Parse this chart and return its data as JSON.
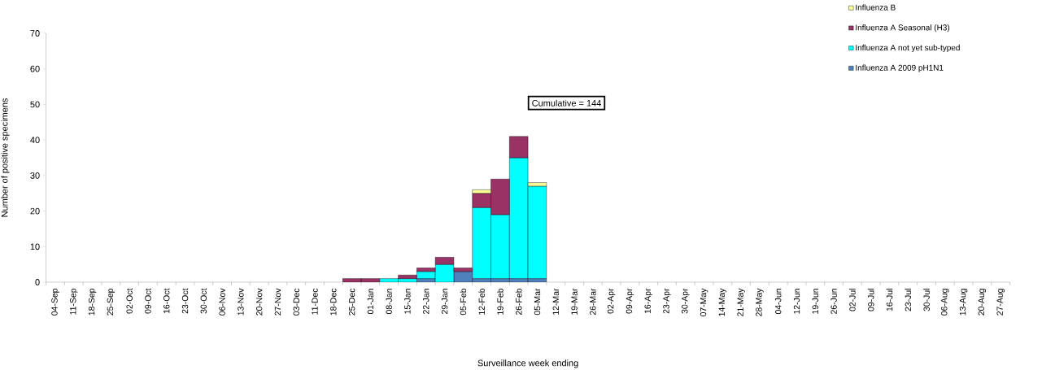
{
  "chart_data": {
    "type": "bar",
    "stacked": true,
    "xlabel": "Surveillance week ending",
    "ylabel": "Number of positive specimens",
    "categories": [
      "04-Sep",
      "11-Sep",
      "18-Sep",
      "25-Sep",
      "02-Oct",
      "09-Oct",
      "16-Oct",
      "23-Oct",
      "30-Oct",
      "06-Nov",
      "13-Nov",
      "20-Nov",
      "27-Nov",
      "03-Dec",
      "11-Dec",
      "18-Dec",
      "25-Dec",
      "01-Jan",
      "08-Jan",
      "15-Jan",
      "22-Jan",
      "29-Jan",
      "05-Feb",
      "12-Feb",
      "19-Feb",
      "26-Feb",
      "05-Mar",
      "12-Mar",
      "19-Mar",
      "26-Mar",
      "02-Apr",
      "09-Apr",
      "16-Apr",
      "23-Apr",
      "30-Apr",
      "07-May",
      "14-May",
      "21-May",
      "28-May",
      "04-Jun",
      "12-Jun",
      "19-Jun",
      "26-Jun",
      "02-Jul",
      "09-Jul",
      "16-Jul",
      "23-Jul",
      "30-Jul",
      "06-Aug",
      "13-Aug",
      "20-Aug",
      "27-Aug"
    ],
    "series": [
      {
        "name": "Influenza A 2009 pH1N1",
        "color": "#4f81bd",
        "values": [
          0,
          0,
          0,
          0,
          0,
          0,
          0,
          0,
          0,
          0,
          0,
          0,
          0,
          0,
          0,
          0,
          0,
          0,
          0,
          0,
          1,
          0,
          3,
          1,
          1,
          1,
          1,
          0,
          0,
          0,
          0,
          0,
          0,
          0,
          0,
          0,
          0,
          0,
          0,
          0,
          0,
          0,
          0,
          0,
          0,
          0,
          0,
          0,
          0,
          0,
          0,
          0
        ]
      },
      {
        "name": "Influenza A not yet sub-typed",
        "color": "#00ffff",
        "values": [
          0,
          0,
          0,
          0,
          0,
          0,
          0,
          0,
          0,
          0,
          0,
          0,
          0,
          0,
          0,
          0,
          0,
          0,
          1,
          1,
          2,
          5,
          0,
          20,
          18,
          34,
          26,
          0,
          0,
          0,
          0,
          0,
          0,
          0,
          0,
          0,
          0,
          0,
          0,
          0,
          0,
          0,
          0,
          0,
          0,
          0,
          0,
          0,
          0,
          0,
          0,
          0
        ]
      },
      {
        "name": "Influenza A Seasonal (H3)",
        "color": "#993366",
        "values": [
          0,
          0,
          0,
          0,
          0,
          0,
          0,
          0,
          0,
          0,
          0,
          0,
          0,
          0,
          0,
          0,
          1,
          1,
          0,
          1,
          1,
          2,
          1,
          4,
          10,
          6,
          0,
          0,
          0,
          0,
          0,
          0,
          0,
          0,
          0,
          0,
          0,
          0,
          0,
          0,
          0,
          0,
          0,
          0,
          0,
          0,
          0,
          0,
          0,
          0,
          0,
          0
        ]
      },
      {
        "name": "Influenza B",
        "color": "#ffff99",
        "values": [
          0,
          0,
          0,
          0,
          0,
          0,
          0,
          0,
          0,
          0,
          0,
          0,
          0,
          0,
          0,
          0,
          0,
          0,
          0,
          0,
          0,
          0,
          0,
          1,
          0,
          0,
          1,
          0,
          0,
          0,
          0,
          0,
          0,
          0,
          0,
          0,
          0,
          0,
          0,
          0,
          0,
          0,
          0,
          0,
          0,
          0,
          0,
          0,
          0,
          0,
          0,
          0
        ]
      }
    ],
    "ylim": [
      0,
      70
    ],
    "yticks": [
      0,
      10,
      20,
      30,
      40,
      50,
      60,
      70
    ],
    "grid": false,
    "legend": "top right",
    "annotations": [
      "Cumulative = 144"
    ]
  }
}
